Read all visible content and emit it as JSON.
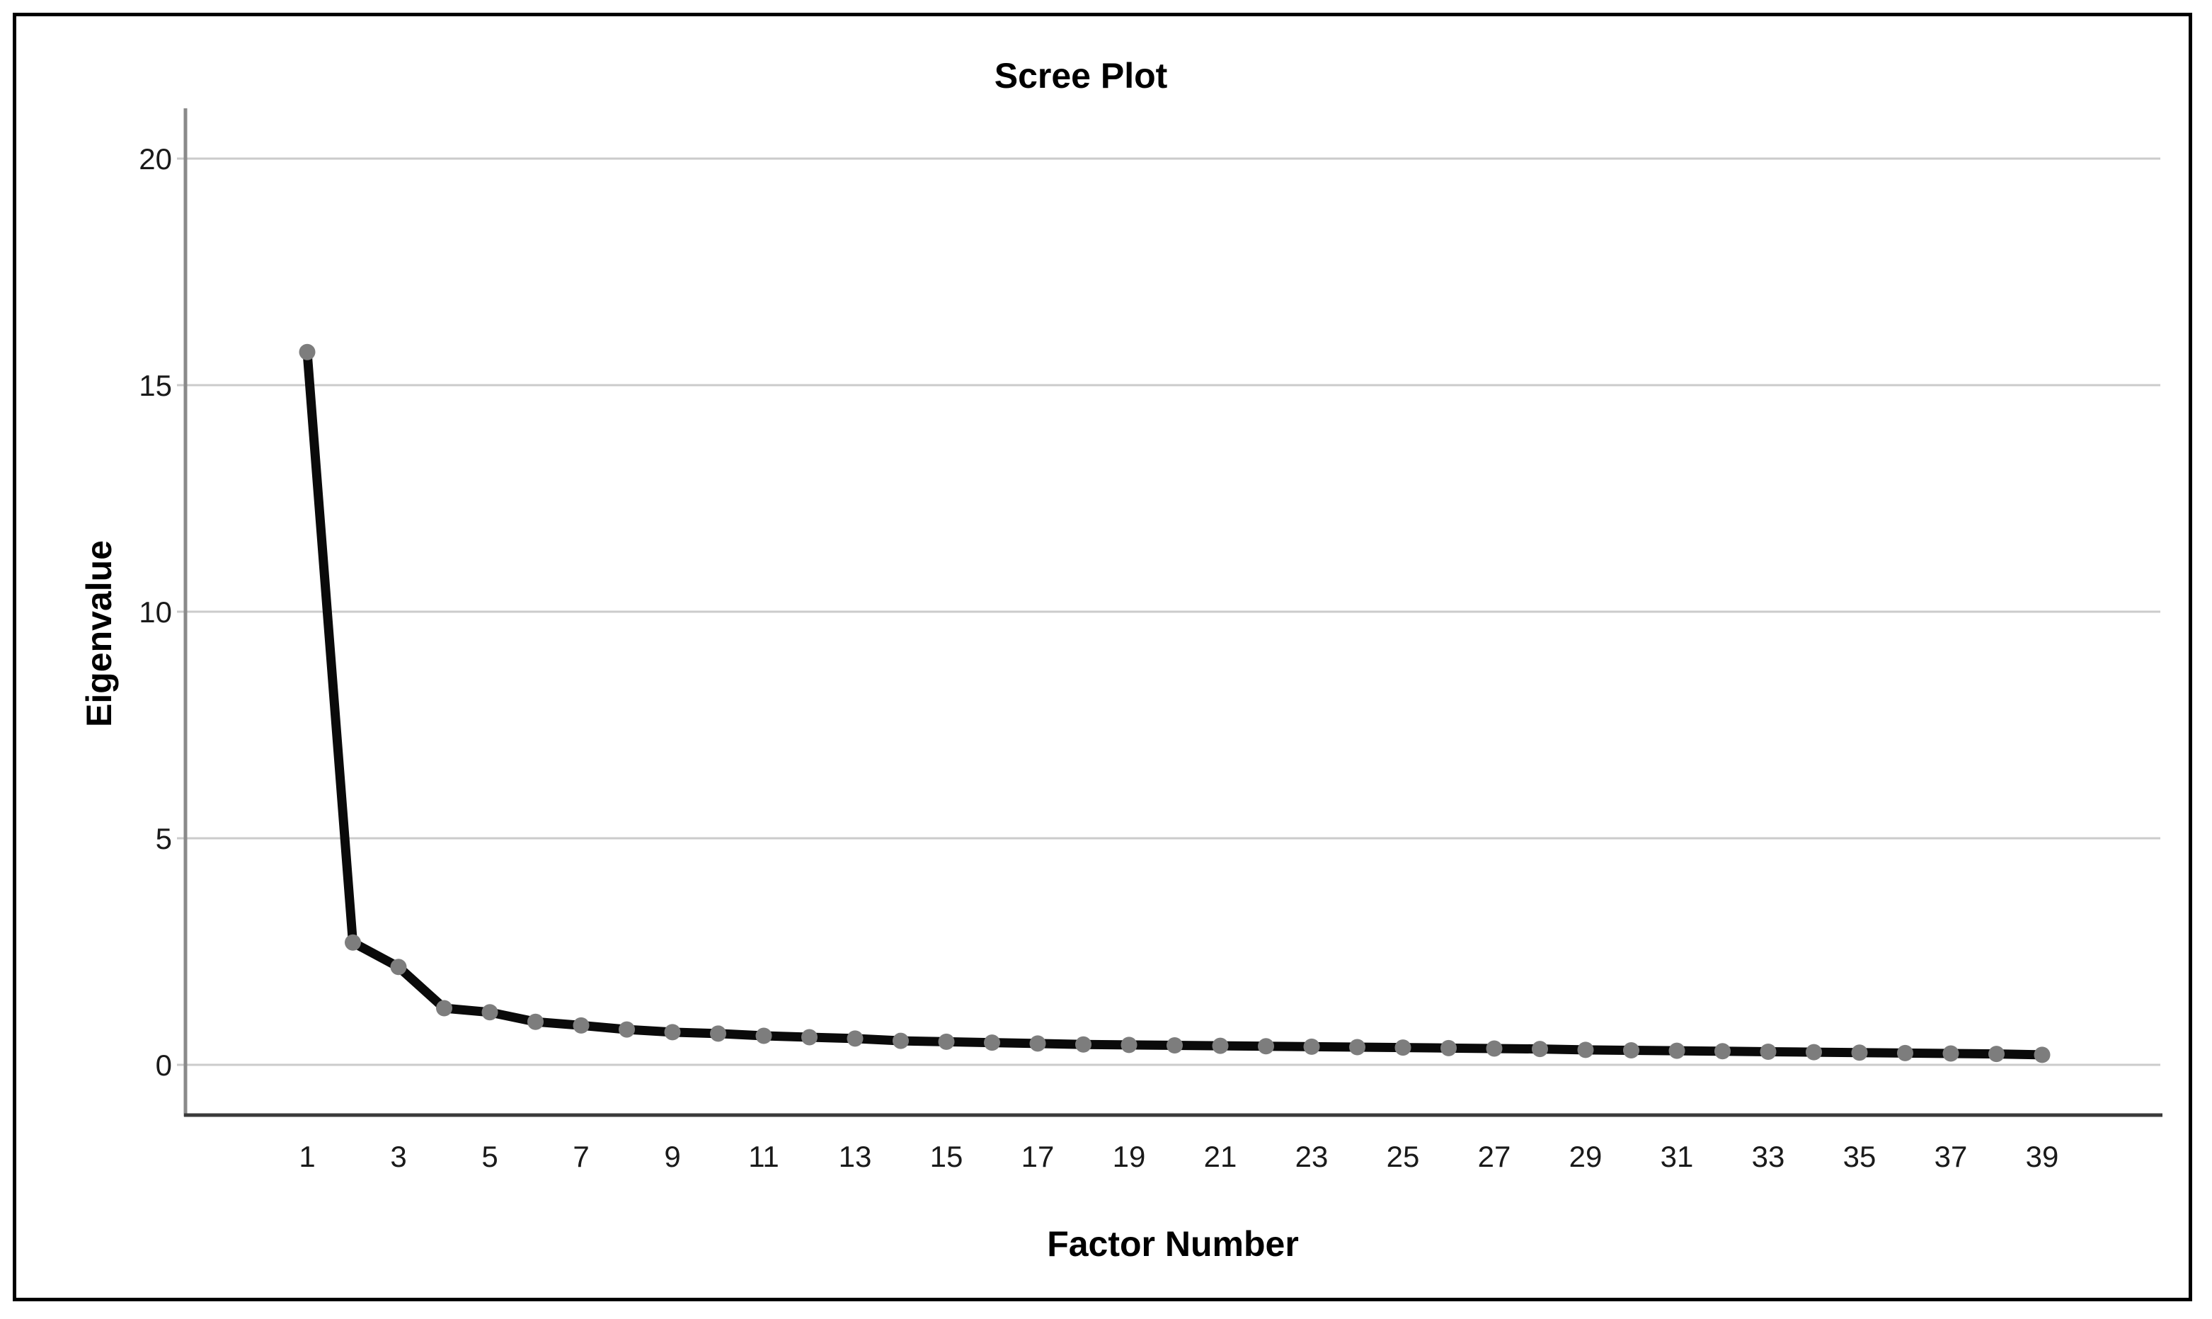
{
  "title": "Scree Plot",
  "chart_data": {
    "type": "line",
    "title": "Scree Plot",
    "xlabel": "Factor Number",
    "ylabel": "Eigenvalue",
    "x": [
      1,
      2,
      3,
      4,
      5,
      6,
      7,
      8,
      9,
      10,
      11,
      12,
      13,
      14,
      15,
      16,
      17,
      18,
      19,
      20,
      21,
      22,
      23,
      24,
      25,
      26,
      27,
      28,
      29,
      30,
      31,
      32,
      33,
      34,
      35,
      36,
      37,
      38,
      39
    ],
    "values": [
      15.73,
      2.7,
      2.16,
      1.25,
      1.16,
      0.95,
      0.87,
      0.78,
      0.72,
      0.69,
      0.64,
      0.61,
      0.58,
      0.53,
      0.51,
      0.49,
      0.47,
      0.45,
      0.44,
      0.43,
      0.42,
      0.41,
      0.4,
      0.39,
      0.38,
      0.37,
      0.36,
      0.35,
      0.33,
      0.32,
      0.31,
      0.3,
      0.29,
      0.28,
      0.27,
      0.26,
      0.25,
      0.24,
      0.22
    ],
    "series_name": "Eigenvalue",
    "y_ticks": [
      0,
      5,
      10,
      15,
      20
    ],
    "x_tick_labels": [
      1,
      3,
      5,
      7,
      9,
      11,
      13,
      15,
      17,
      19,
      21,
      23,
      25,
      27,
      29,
      31,
      33,
      35,
      37,
      39
    ],
    "ylim": [
      0,
      20
    ],
    "grid": "horizontal",
    "legend": "none",
    "marker": "circle",
    "colors": {
      "line": "#0a0a0a",
      "marker": "#7d7d7d",
      "grid": "#cbcbcb",
      "y_axis": "#8a8a8a",
      "bottom_frame": "#3a3a3a",
      "border": "#000000",
      "tick_text": "#1a1a1a",
      "background": "#ffffff"
    }
  }
}
